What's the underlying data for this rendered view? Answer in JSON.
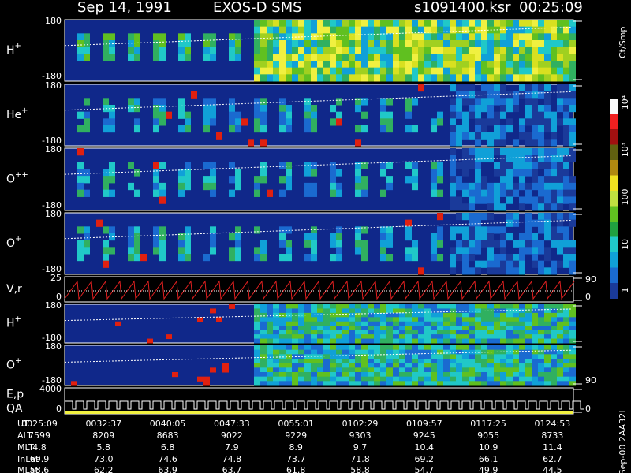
{
  "header": {
    "date": "Sep 14, 1991",
    "instrument": "EXOS-D SMS",
    "file": "s1091400.ksr",
    "time": "00:25:09"
  },
  "panels": [
    {
      "label": "H",
      "sup": "+",
      "top": "180",
      "bottom": "-180"
    },
    {
      "label": "He",
      "sup": "+",
      "top": "180",
      "bottom": "-180"
    },
    {
      "label": "O",
      "sup": "++",
      "top": "180",
      "bottom": "-180"
    },
    {
      "label": "O",
      "sup": "+",
      "top": "180",
      "bottom": "-180"
    },
    {
      "label": "V,r",
      "top": "25",
      "bottom": "0",
      "right_top": "90",
      "right_bottom": "0"
    },
    {
      "label": "H",
      "sup": "+",
      "top": "180",
      "bottom": "-180"
    },
    {
      "label": "O",
      "sup": "+",
      "top": "180",
      "bottom": "-180",
      "right_bottom": "90"
    },
    {
      "label": "E,p",
      "label2": "QA",
      "top": "4000",
      "bottom": "0",
      "right_bottom": "0"
    }
  ],
  "colorbar": {
    "unit": "Ct/Smp",
    "ticks": [
      "10⁴",
      "10³",
      "100",
      "10",
      "1"
    ]
  },
  "side_note": "Sep-00 2AA32L",
  "table": {
    "rows": [
      [
        "UT",
        "0025:09",
        "0032:37",
        "0040:05",
        "0047:33",
        "0055:01",
        "0102:29",
        "0109:57",
        "0117:25",
        "0124:53"
      ],
      [
        "ALT",
        "7599",
        "8209",
        "8683",
        "9022",
        "9229",
        "9303",
        "9245",
        "9055",
        "8733"
      ],
      [
        "MLT",
        "4.8",
        "5.8",
        "6.8",
        "7.9",
        "8.9",
        "9.7",
        "10.4",
        "10.9",
        "11.4"
      ],
      [
        "InLat",
        "69.9",
        "73.0",
        "74.6",
        "74.8",
        "73.7",
        "71.8",
        "69.2",
        "66.1",
        "62.7"
      ],
      [
        "MLat",
        "58.6",
        "62.2",
        "63.9",
        "63.7",
        "61.8",
        "58.8",
        "54.7",
        "49.9",
        "44.5"
      ]
    ]
  }
}
